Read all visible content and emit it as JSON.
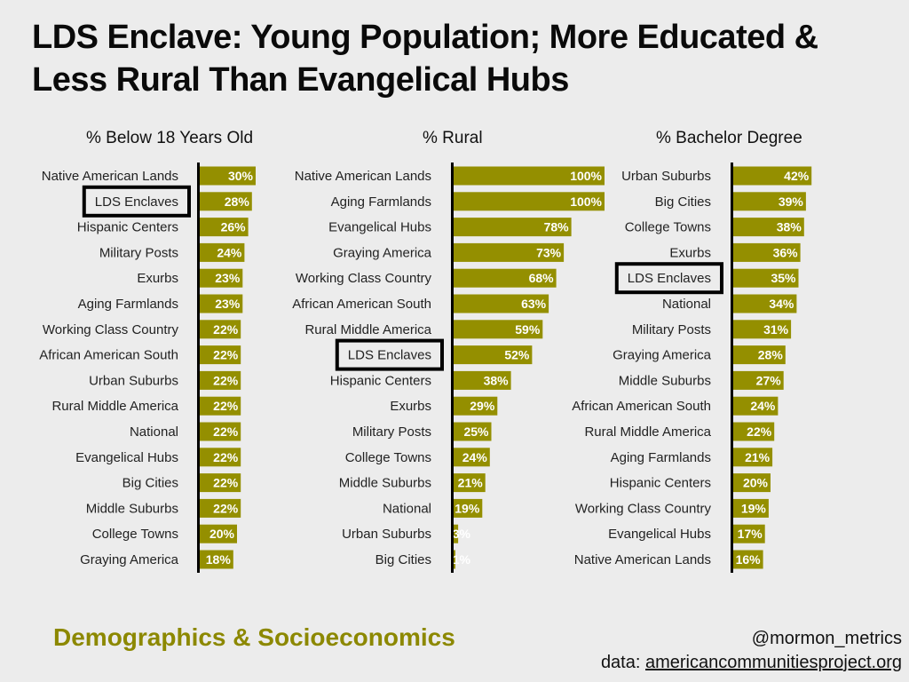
{
  "title": "LDS Enclave: Young Population; More Educated & Less Rural Than Evangelical Hubs",
  "colors": {
    "bar": "#948f00",
    "background": "#ececec",
    "footer_accent": "#8c8800"
  },
  "footer": {
    "subtitle": "Demographics & Socioeconomics",
    "handle": "@mormon_metrics",
    "source_prefix": "data:",
    "source_link": "americancommunitiesproject.org"
  },
  "chart_data": [
    {
      "type": "bar",
      "orientation": "horizontal",
      "title": "% Below 18 Years Old",
      "highlight": "LDS Enclaves",
      "xlim": [
        0,
        100
      ],
      "categories": [
        "Native American Lands",
        "LDS Enclaves",
        "Hispanic Centers",
        "Military Posts",
        "Exurbs",
        "Aging Farmlands",
        "Working Class Country",
        "African American South",
        "Urban Suburbs",
        "Rural Middle America",
        "National",
        "Evangelical Hubs",
        "Big Cities",
        "Middle Suburbs",
        "College Towns",
        "Graying America"
      ],
      "values": [
        30,
        28,
        26,
        24,
        23,
        23,
        22,
        22,
        22,
        22,
        22,
        22,
        22,
        22,
        20,
        18
      ],
      "value_labels": [
        "30%",
        "28%",
        "26%",
        "24%",
        "23%",
        "23%",
        "22%",
        "22%",
        "22%",
        "22%",
        "22%",
        "22%",
        "22%",
        "22%",
        "20%",
        "18%"
      ]
    },
    {
      "type": "bar",
      "orientation": "horizontal",
      "title": "% Rural",
      "highlight": "LDS Enclaves",
      "xlim": [
        0,
        100
      ],
      "categories": [
        "Native American Lands",
        "Aging Farmlands",
        "Evangelical Hubs",
        "Graying America",
        "Working Class Country",
        "African American South",
        "Rural Middle America",
        "LDS Enclaves",
        "Hispanic Centers",
        "Exurbs",
        "Military Posts",
        "College Towns",
        "Middle Suburbs",
        "National",
        "Urban Suburbs",
        "Big Cities"
      ],
      "values": [
        100,
        100,
        78,
        73,
        68,
        63,
        59,
        52,
        38,
        29,
        25,
        24,
        21,
        19,
        3,
        1
      ],
      "value_labels": [
        "100%",
        "100%",
        "78%",
        "73%",
        "68%",
        "63%",
        "59%",
        "52%",
        "38%",
        "29%",
        "25%",
        "24%",
        "21%",
        "19%",
        "3%",
        "1%"
      ]
    },
    {
      "type": "bar",
      "orientation": "horizontal",
      "title": "% Bachelor Degree",
      "highlight": "LDS Enclaves",
      "xlim": [
        0,
        100
      ],
      "categories": [
        "Urban Suburbs",
        "Big Cities",
        "College Towns",
        "Exurbs",
        "LDS Enclaves",
        "National",
        "Military Posts",
        "Graying America",
        "Middle Suburbs",
        "African American South",
        "Rural Middle America",
        "Aging Farmlands",
        "Hispanic Centers",
        "Working Class Country",
        "Evangelical Hubs",
        "Native American Lands"
      ],
      "values": [
        42,
        39,
        38,
        36,
        35,
        34,
        31,
        28,
        27,
        24,
        22,
        21,
        20,
        19,
        17,
        16
      ],
      "value_labels": [
        "42%",
        "39%",
        "38%",
        "36%",
        "35%",
        "34%",
        "31%",
        "28%",
        "27%",
        "24%",
        "22%",
        "21%",
        "20%",
        "19%",
        "17%",
        "16%"
      ]
    }
  ]
}
